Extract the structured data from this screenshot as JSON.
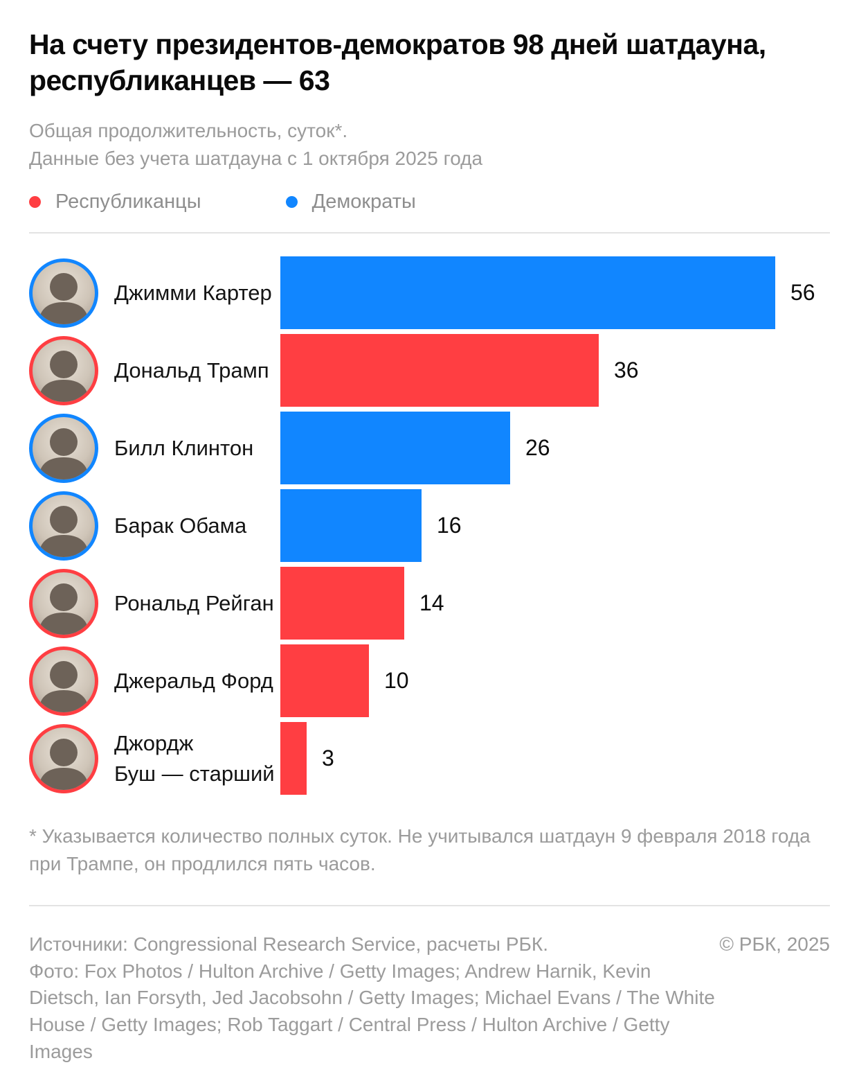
{
  "header": {
    "title": "На счету президентов-демократов 98 дней шатдауна, республиканцев — 63",
    "subtitle_line1": "Общая продолжительность, суток*.",
    "subtitle_line2": "Данные без учета шатдауна с 1 октября 2025 года"
  },
  "colors": {
    "republican_red": "#ff3e42",
    "democrat_blue": "#1186ff",
    "muted_text": "#9b9b9b",
    "divider": "#e3e3e3"
  },
  "legend": [
    {
      "label": "Республиканцы",
      "color": "#ff3e42",
      "party": "republican"
    },
    {
      "label": "Демократы",
      "color": "#1186ff",
      "party": "democrat"
    }
  ],
  "chart_data": {
    "type": "bar",
    "orientation": "horizontal",
    "title": "На счету президентов-демократов 98 дней шатдауна, республиканцев — 63",
    "subtitle": "Общая продолжительность, суток*. Данные без учета шатдауна с 1 октября 2025 года",
    "unit": "суток",
    "xlim": [
      0,
      56
    ],
    "max_value": 56,
    "grid": false,
    "legend_position": "top",
    "totals": {
      "democrats_days": 98,
      "republicans_days": 63
    },
    "series": [
      {
        "name": "Джимми Картер",
        "label_lines": [
          "Джимми Картер"
        ],
        "value": 56,
        "party": "democrat",
        "color": "#1186ff"
      },
      {
        "name": "Дональд Трамп",
        "label_lines": [
          "Дональд Трамп"
        ],
        "value": 36,
        "party": "republican",
        "color": "#ff3e42"
      },
      {
        "name": "Билл Клинтон",
        "label_lines": [
          "Билл Клинтон"
        ],
        "value": 26,
        "party": "democrat",
        "color": "#1186ff"
      },
      {
        "name": "Барак Обама",
        "label_lines": [
          "Барак Обама"
        ],
        "value": 16,
        "party": "democrat",
        "color": "#1186ff"
      },
      {
        "name": "Рональд Рейган",
        "label_lines": [
          "Рональд Рейган"
        ],
        "value": 14,
        "party": "republican",
        "color": "#ff3e42"
      },
      {
        "name": "Джеральд Форд",
        "label_lines": [
          "Джеральд Форд"
        ],
        "value": 10,
        "party": "republican",
        "color": "#ff3e42"
      },
      {
        "name": "Джордж Буш — старший",
        "label_lines": [
          "Джордж",
          "Буш — старший"
        ],
        "value": 3,
        "party": "republican",
        "color": "#ff3e42"
      }
    ]
  },
  "footnote": "* Указывается количество полных суток. Не учитывался шатдаун 9 февраля 2018 года при Трампе, он продлился пять часов.",
  "footer": {
    "sources": "Источники: Congressional Research Service, расчеты РБК.",
    "copyright": "© РБК, 2025",
    "photo_credits": "Фото: Fox Photos / Hulton Archive / Getty Images; Andrew Harnik, Kevin Dietsch, Ian Forsyth, Jed Jacobsohn / Getty Images; Michael Evans / The White House / Getty Images; Rob Taggart / Central Press / Hulton Archive / Getty Images"
  }
}
